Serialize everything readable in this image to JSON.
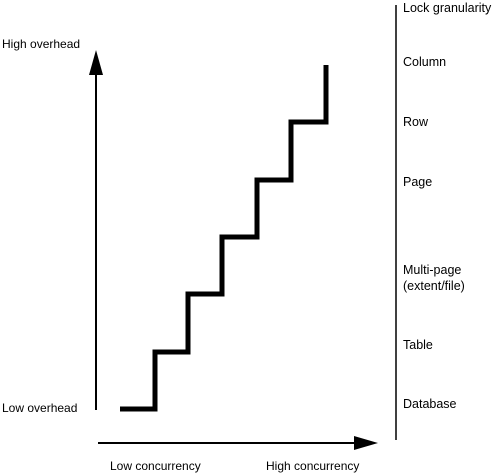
{
  "y_axis": {
    "top_label": "High overhead",
    "bottom_label": "Low overhead"
  },
  "x_axis": {
    "left_label": "Low concurrency",
    "right_label": "High concurrency"
  },
  "granularity": {
    "title": "Lock granularity",
    "levels": [
      "Column",
      "Row",
      "Page",
      "Multi-page",
      "(extent/file)",
      "Table",
      "Database"
    ]
  },
  "colors": {
    "ink": "#000000",
    "background": "#ffffff"
  }
}
